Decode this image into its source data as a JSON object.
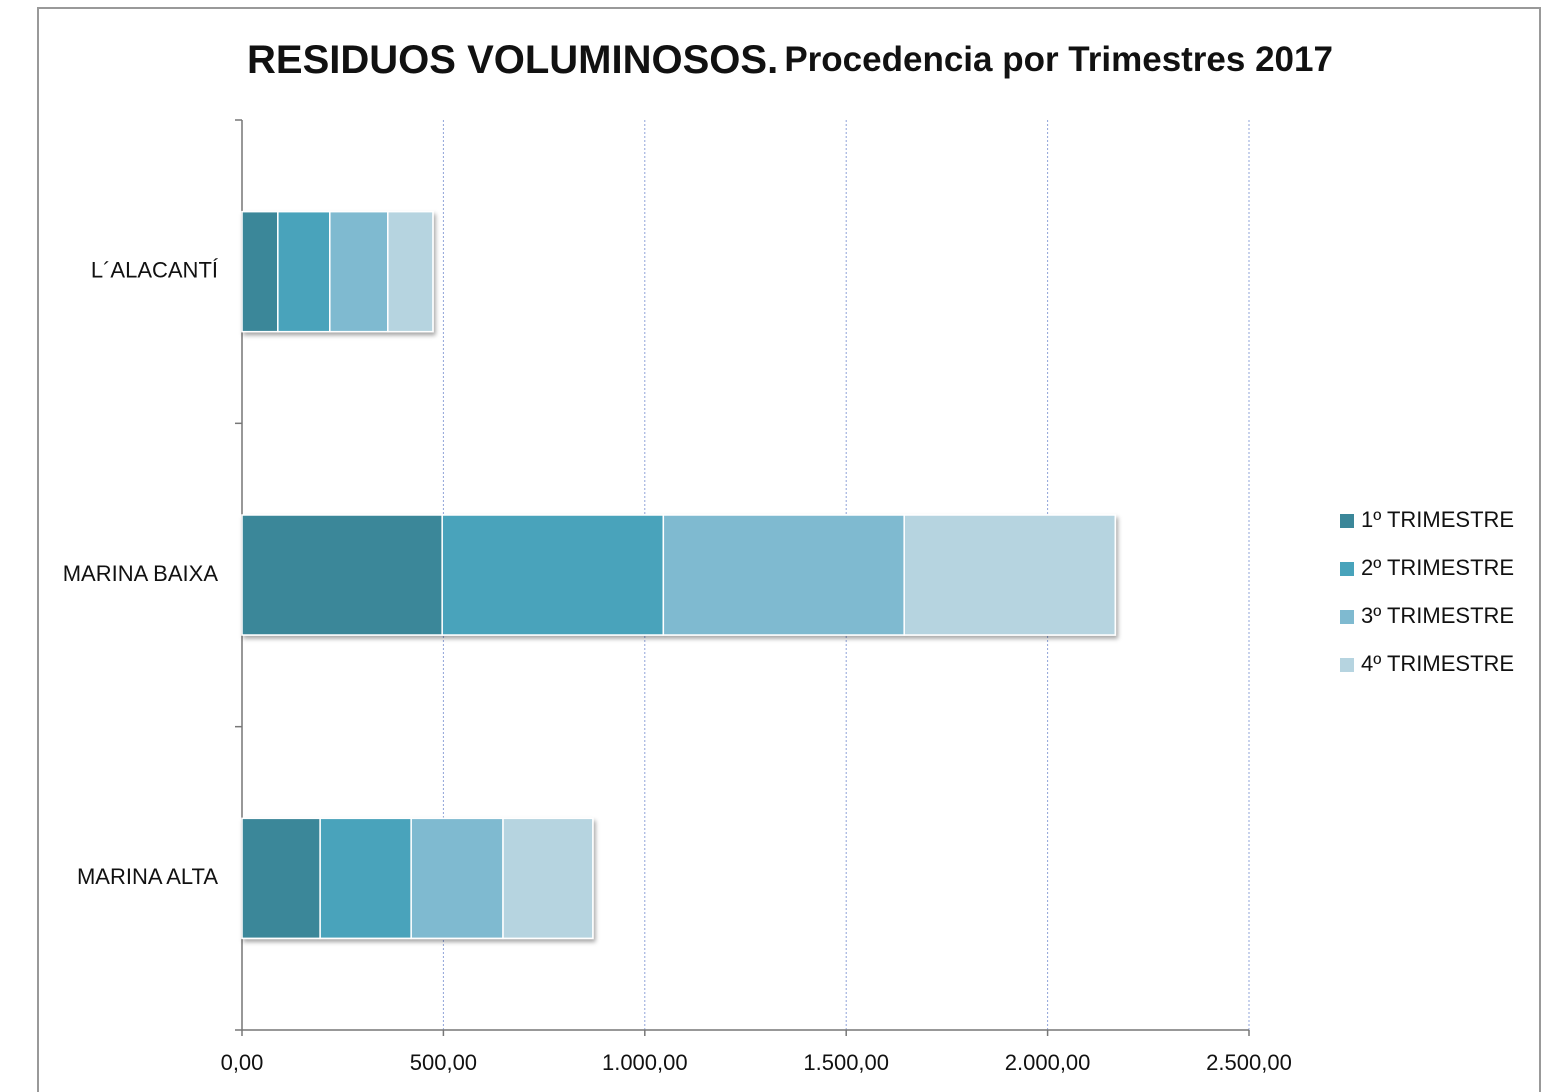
{
  "chart_data": {
    "type": "stacked-barh",
    "title": "RESIDUOS VOLUMINOSOS.",
    "subtitle": "Procedencia por Trimestres 2017",
    "categories": [
      "L´ALACANTÍ",
      "MARINA BAIXA",
      "MARINA ALTA"
    ],
    "series": [
      {
        "name": "1º TRIMESTRE",
        "color": "#3b8799",
        "values": [
          89,
          497,
          194
        ]
      },
      {
        "name": "2º TRIMESTRE",
        "color": "#48a3bb",
        "values": [
          129,
          549,
          226
        ]
      },
      {
        "name": "3º TRIMESTRE",
        "color": "#7fbad0",
        "values": [
          144,
          598,
          228
        ]
      },
      {
        "name": "4º TRIMESTRE",
        "color": "#b6d4e0",
        "values": [
          112,
          524,
          223
        ]
      }
    ],
    "xlim": [
      0,
      2500
    ],
    "xticks": [
      {
        "value": 0,
        "label": "0,00"
      },
      {
        "value": 500,
        "label": "500,00"
      },
      {
        "value": 1000,
        "label": "1.000,00"
      },
      {
        "value": 1500,
        "label": "1.500,00"
      },
      {
        "value": 2000,
        "label": "2.000,00"
      },
      {
        "value": 2500,
        "label": "2.500,00"
      }
    ],
    "grid": true,
    "legend": "right"
  }
}
